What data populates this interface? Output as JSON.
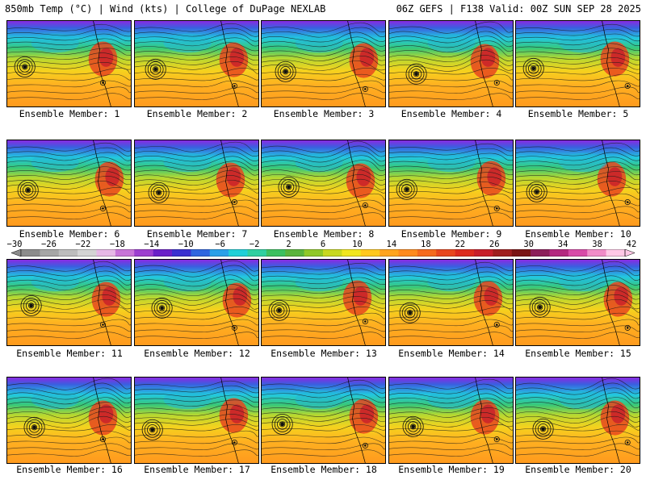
{
  "header": {
    "left": "850mb Temp (°C) | Wind (kts) | College of DuPage NEXLAB",
    "right": "06Z GEFS | F138 Valid: 00Z SUN SEP 28 2025"
  },
  "colorbar": {
    "tick_labels": [
      "−30",
      "−26",
      "−22",
      "−18",
      "−14",
      "−10",
      "−6",
      "−2",
      "2",
      "6",
      "10",
      "14",
      "18",
      "22",
      "26",
      "30",
      "34",
      "38",
      "42"
    ],
    "colors": [
      "#8c8c8c",
      "#a6a6a6",
      "#bdbdbd",
      "#d4d4d4",
      "#e6b8e6",
      "#c874d8",
      "#9d3fd0",
      "#6a1fc8",
      "#3a2fd0",
      "#2f66e0",
      "#2aa0e8",
      "#1fd0d8",
      "#2fd0a0",
      "#3cc060",
      "#5ab43c",
      "#90c828",
      "#c8d820",
      "#f0e61e",
      "#ffc81e",
      "#ffa41e",
      "#ff8a1e",
      "#f56a1e",
      "#e8461e",
      "#dc2a1e",
      "#c81e2a",
      "#a01e1e",
      "#7a1414",
      "#8c1e5a",
      "#b42880",
      "#d84aa8",
      "#f08cc8",
      "#ffc8e6"
    ]
  },
  "panels": [
    {
      "label": "Ensemble Member: 1"
    },
    {
      "label": "Ensemble Member: 2"
    },
    {
      "label": "Ensemble Member: 3"
    },
    {
      "label": "Ensemble Member: 4"
    },
    {
      "label": "Ensemble Member: 5"
    },
    {
      "label": "Ensemble Member: 6"
    },
    {
      "label": "Ensemble Member: 7"
    },
    {
      "label": "Ensemble Member: 8"
    },
    {
      "label": "Ensemble Member: 9"
    },
    {
      "label": "Ensemble Member: 10"
    },
    {
      "label": "Ensemble Member: 11"
    },
    {
      "label": "Ensemble Member: 12"
    },
    {
      "label": "Ensemble Member: 13"
    },
    {
      "label": "Ensemble Member: 14"
    },
    {
      "label": "Ensemble Member: 15"
    },
    {
      "label": "Ensemble Member: 16"
    },
    {
      "label": "Ensemble Member: 17"
    },
    {
      "label": "Ensemble Member: 18"
    },
    {
      "label": "Ensemble Member: 19"
    },
    {
      "label": "Ensemble Member: 20"
    }
  ]
}
